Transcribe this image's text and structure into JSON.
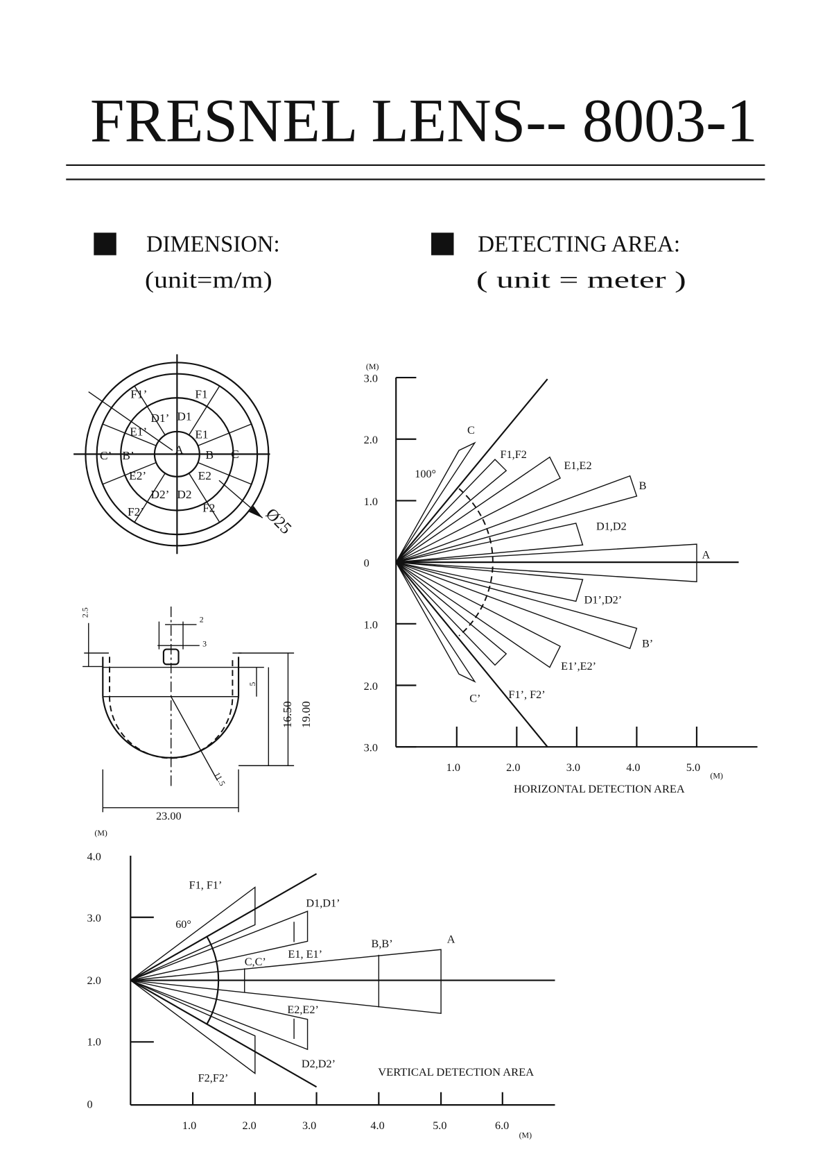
{
  "header": {
    "title": "FRESNEL LENS-- 8003-1"
  },
  "dimension": {
    "heading": "DIMENSION:",
    "unit": "(unit=m/m)"
  },
  "detecting_area": {
    "heading": "DETECTING AREA:",
    "unit": "( unit = meter )"
  },
  "lens_face": {
    "labels": [
      "F1’",
      "F1",
      "D1’",
      "D1",
      "E1’",
      "E1",
      "C’",
      "B’",
      "A",
      "B",
      "C",
      "E2’",
      "E2",
      "D2’",
      "D2",
      "F2’",
      "F2"
    ],
    "diameter": "Ø25"
  },
  "cross_section": {
    "dimensions": [
      "2.5",
      "2",
      "3",
      "5",
      "16.50",
      "19.00",
      "11.5",
      "23.00"
    ]
  },
  "horizontal_area": {
    "title": "HORIZONTAL DETECTION AREA",
    "y_unit": "(M)",
    "x_unit": "(M)",
    "y_ticks": [
      "3.0",
      "2.0",
      "1.0",
      "0",
      "1.0",
      "2.0",
      "3.0"
    ],
    "x_ticks": [
      "1.0",
      "2.0",
      "3.0",
      "4.0",
      "5.0"
    ],
    "angle": "100°",
    "zones": [
      "C",
      "F1,F2",
      "E1,E2",
      "B",
      "D1,D2",
      "A",
      "D1’,D2’",
      "B’",
      "E1’,E2’",
      "F1’, F2’",
      "C’"
    ]
  },
  "vertical_area": {
    "title": "VERTICAL DETECTION AREA",
    "y_unit": "(M)",
    "x_unit": "(M)",
    "y_ticks": [
      "4.0",
      "3.0",
      "2.0",
      "1.0",
      "0"
    ],
    "x_ticks": [
      "1.0",
      "2.0",
      "3.0",
      "4.0",
      "5.0",
      "6.0"
    ],
    "angle": "60°",
    "zones": [
      "F1, F1’",
      "D1,D1’",
      "C,C’",
      "E1, E1’",
      "B,B’",
      "A",
      "E2,E2’",
      "D2,D2’",
      "F2,F2’"
    ]
  }
}
